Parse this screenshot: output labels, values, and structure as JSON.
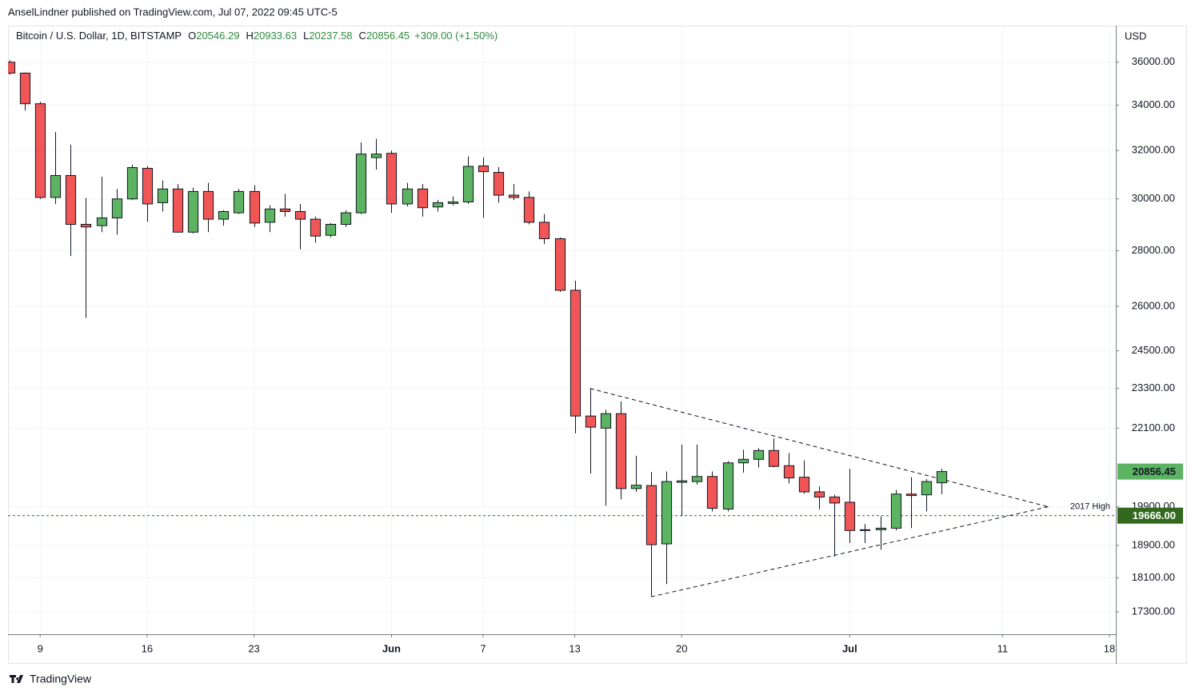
{
  "header": {
    "author_line": "AnselLindner published on TradingView.com, Jul 07, 2022 09:45 UTC-5",
    "footer": "TradingView"
  },
  "chart_data": {
    "type": "candlestick",
    "title": "Bitcoin / U.S. Dollar, 1D, BITSTAMP",
    "ohlc_keys": [
      "O",
      "H",
      "L",
      "C"
    ],
    "ohlc_texts": [
      "20546.29",
      "20933.63",
      "20237.58",
      "20856.45"
    ],
    "change_text": "+309.00 (+1.50%)",
    "y_unit": "USD",
    "up_color": "#5cb462",
    "down_color": "#f05656",
    "x": [
      "2022-05-07",
      "2022-05-08",
      "2022-05-09",
      "2022-05-10",
      "2022-05-11",
      "2022-05-12",
      "2022-05-13",
      "2022-05-14",
      "2022-05-15",
      "2022-05-16",
      "2022-05-17",
      "2022-05-18",
      "2022-05-19",
      "2022-05-20",
      "2022-05-21",
      "2022-05-22",
      "2022-05-23",
      "2022-05-24",
      "2022-05-25",
      "2022-05-26",
      "2022-05-27",
      "2022-05-28",
      "2022-05-29",
      "2022-05-30",
      "2022-05-31",
      "2022-06-01",
      "2022-06-02",
      "2022-06-03",
      "2022-06-04",
      "2022-06-05",
      "2022-06-06",
      "2022-06-07",
      "2022-06-08",
      "2022-06-09",
      "2022-06-10",
      "2022-06-11",
      "2022-06-12",
      "2022-06-13",
      "2022-06-14",
      "2022-06-15",
      "2022-06-16",
      "2022-06-17",
      "2022-06-18",
      "2022-06-19",
      "2022-06-20",
      "2022-06-21",
      "2022-06-22",
      "2022-06-23",
      "2022-06-24",
      "2022-06-25",
      "2022-06-26",
      "2022-06-27",
      "2022-06-28",
      "2022-06-29",
      "2022-06-30",
      "2022-07-01",
      "2022-07-02",
      "2022-07-03",
      "2022-07-04",
      "2022-07-05",
      "2022-07-06",
      "2022-07-07"
    ],
    "open": [
      36000,
      35480,
      34060,
      30060,
      30950,
      29000,
      28950,
      29250,
      30000,
      31250,
      29850,
      30400,
      28700,
      30300,
      29200,
      29450,
      30300,
      29080,
      29600,
      29500,
      29200,
      28580,
      29000,
      29450,
      31700,
      31880,
      29800,
      30400,
      29680,
      29820,
      29880,
      31350,
      31080,
      30150,
      30060,
      29080,
      28450,
      26560,
      22460,
      22100,
      22530,
      20390,
      20470,
      18940,
      20560,
      20580,
      20720,
      19840,
      21100,
      21200,
      21450,
      21020,
      20700,
      20300,
      20160,
      20020,
      19300,
      19300,
      19340,
      20240,
      20220,
      20546.29
    ],
    "high": [
      36100,
      35510,
      34150,
      32800,
      32250,
      30030,
      30900,
      30400,
      31400,
      31350,
      30750,
      30600,
      30450,
      30650,
      29550,
      30400,
      30550,
      29750,
      30200,
      29800,
      29300,
      29050,
      29550,
      32350,
      32500,
      32000,
      30650,
      30600,
      29950,
      30100,
      31750,
      31700,
      31300,
      30600,
      30300,
      29400,
      28500,
      26900,
      23300,
      22650,
      22900,
      21300,
      20840,
      20860,
      21620,
      21620,
      20860,
      21150,
      21470,
      21520,
      21800,
      21380,
      21170,
      20450,
      20220,
      20930,
      19450,
      19650,
      20350,
      20700,
      20650,
      20933.63
    ],
    "low": [
      35400,
      33750,
      30000,
      29800,
      27800,
      25600,
      28700,
      28600,
      29950,
      29100,
      29500,
      28680,
      28650,
      28700,
      28950,
      29400,
      28900,
      28700,
      29300,
      28050,
      28300,
      28500,
      28900,
      29400,
      31200,
      29450,
      29700,
      29300,
      29500,
      29750,
      29800,
      29250,
      29850,
      29950,
      29000,
      28250,
      26500,
      21950,
      20800,
      19930,
      20100,
      20300,
      17650,
      17950,
      19650,
      20500,
      19780,
      19780,
      20830,
      20970,
      20980,
      20530,
      20250,
      19830,
      18620,
      18960,
      18960,
      18790,
      19280,
      19340,
      19780,
      20237.58
    ],
    "close": [
      35480,
      34060,
      30060,
      30950,
      29000,
      28900,
      29250,
      30000,
      31280,
      29800,
      30400,
      28700,
      30300,
      29200,
      29500,
      30300,
      29050,
      29600,
      29500,
      29200,
      28550,
      29000,
      29450,
      31850,
      31850,
      29800,
      30400,
      29650,
      29850,
      29880,
      31330,
      31110,
      30150,
      30060,
      29080,
      28450,
      26560,
      22460,
      22130,
      22530,
      20390,
      20480,
      18920,
      20580,
      20600,
      20720,
      19860,
      21100,
      21200,
      21450,
      21000,
      20680,
      20300,
      20160,
      20000,
      19280,
      19280,
      19340,
      20240,
      20200,
      20580,
      20856.45
    ],
    "xlim": [
      "2022-05-07",
      "2022-07-18"
    ],
    "xticks": [
      {
        "value": "2022-05-09",
        "label": "9"
      },
      {
        "value": "2022-05-16",
        "label": "16"
      },
      {
        "value": "2022-05-23",
        "label": "23"
      },
      {
        "value": "2022-06-01",
        "label": "Jun"
      },
      {
        "value": "2022-06-07",
        "label": "7"
      },
      {
        "value": "2022-06-13",
        "label": "13"
      },
      {
        "value": "2022-06-20",
        "label": "20"
      },
      {
        "value": "2022-07-01",
        "label": "Jul"
      },
      {
        "value": "2022-07-11",
        "label": "11"
      },
      {
        "value": "2022-07-18",
        "label": "18"
      }
    ],
    "ylim": [
      16790,
      37800
    ],
    "log_scale": true,
    "grid": true,
    "yticks": [
      {
        "value": 36000,
        "label": "36000.00"
      },
      {
        "value": 34000,
        "label": "34000.00"
      },
      {
        "value": 32000,
        "label": "32000.00"
      },
      {
        "value": 30000,
        "label": "30000.00"
      },
      {
        "value": 28000,
        "label": "28000.00"
      },
      {
        "value": 26000,
        "label": "26000.00"
      },
      {
        "value": 24500,
        "label": "24500.00"
      },
      {
        "value": 23300,
        "label": "23300.00"
      },
      {
        "value": 22100,
        "label": "22100.00"
      },
      {
        "value": 19900,
        "label": "19900.00"
      },
      {
        "value": 18900,
        "label": "18900.00"
      },
      {
        "value": 18100,
        "label": "18100.00"
      },
      {
        "value": 17300,
        "label": "17300.00"
      }
    ],
    "last_price": 20856.45,
    "hline": {
      "value": 19666,
      "value_label": "19666.00",
      "label": "2017 High",
      "color": "#33691e"
    },
    "trendlines": [
      {
        "x": [
          "2022-06-14",
          "2022-07-14"
        ],
        "y": [
          23300,
          19900
        ]
      },
      {
        "x": [
          "2022-06-18",
          "2022-07-14"
        ],
        "y": [
          17650,
          19900
        ]
      }
    ]
  }
}
